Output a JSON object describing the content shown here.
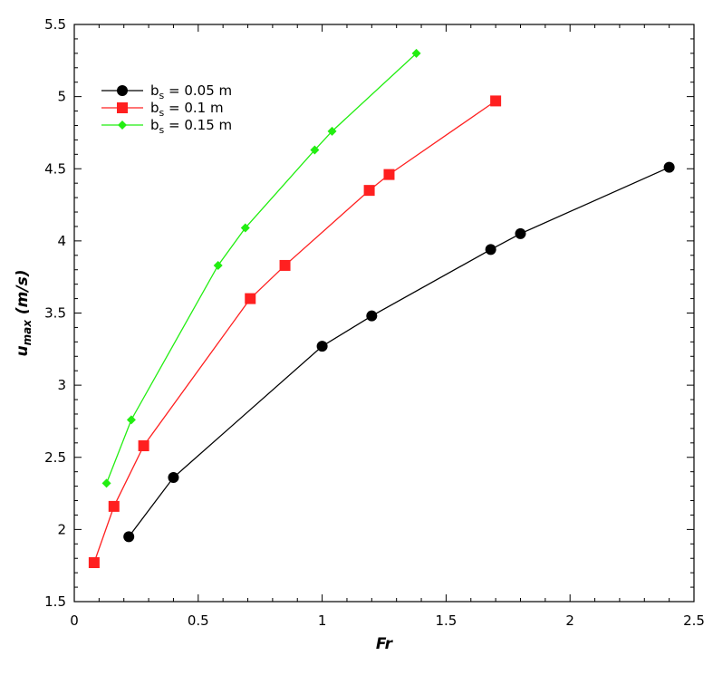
{
  "chart_data": {
    "type": "line",
    "title": "",
    "xlabel": "Fr",
    "ylabel_main": "u",
    "ylabel_sub": "max",
    "ylabel_units": " (m/s)",
    "xlim": [
      0,
      2.5
    ],
    "ylim": [
      1.5,
      5.5
    ],
    "x_ticks": [
      "0",
      "0.5",
      "1",
      "1.5",
      "2",
      "2.5"
    ],
    "y_ticks": [
      "1.5",
      "2",
      "2.5",
      "3",
      "3.5",
      "4",
      "4.5",
      "5",
      "5.5"
    ],
    "grid": false,
    "legend_position": "top-left",
    "series": [
      {
        "name": "b",
        "name_sub": "s",
        "name_rest": " = 0.05 m",
        "color": "#000000",
        "marker": "circle",
        "x": [
          0.22,
          0.4,
          1.0,
          1.2,
          1.68,
          1.8,
          2.4
        ],
        "y": [
          1.95,
          2.36,
          3.27,
          3.48,
          3.94,
          4.05,
          4.51
        ]
      },
      {
        "name": "b",
        "name_sub": "s",
        "name_rest": " = 0.1 m",
        "color": "#ff2020",
        "marker": "square",
        "x": [
          0.08,
          0.16,
          0.28,
          0.71,
          0.85,
          1.19,
          1.27,
          1.7
        ],
        "y": [
          1.77,
          2.16,
          2.58,
          3.6,
          3.83,
          4.35,
          4.46,
          4.97
        ]
      },
      {
        "name": "b",
        "name_sub": "s",
        "name_rest": " = 0.15 m",
        "color": "#22ee11",
        "marker": "diamond",
        "x": [
          0.13,
          0.23,
          0.58,
          0.69,
          0.97,
          1.04,
          1.38
        ],
        "y": [
          2.32,
          2.76,
          3.83,
          4.09,
          4.63,
          4.76,
          5.3
        ]
      }
    ]
  }
}
